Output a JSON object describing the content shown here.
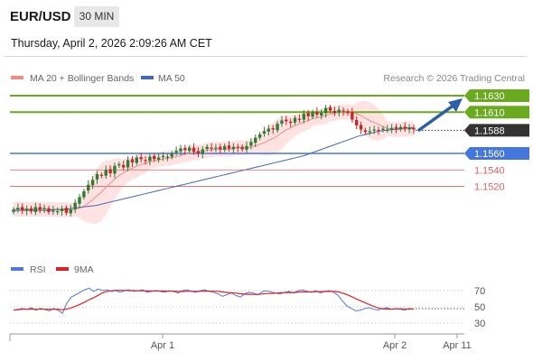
{
  "header": {
    "pair": "EUR/USD",
    "timeframe": "30 MIN",
    "datetime": "Thursday, April 2, 2026 2:09:26 AM CET"
  },
  "colors": {
    "candle_up": "#2e7d32",
    "candle_down": "#c62828",
    "bollinger_fill": "#ffdede",
    "ma20": "#f28b82",
    "ma50": "#4466bb",
    "resistance": "#6aaa1e",
    "support_major": "#4477dd",
    "support_minor": "#e06060",
    "current": "#333333",
    "rsi": "#5577dd",
    "rsi_ma": "#dd2222",
    "arrow": "#2b5fa8"
  },
  "chart_data": [
    {
      "type": "candlestick",
      "title": "",
      "legend": [
        {
          "label": "MA 20 + Bollinger Bands",
          "color": "#f28b82"
        },
        {
          "label": "MA 50",
          "color": "#4466bb"
        }
      ],
      "legend_position": "top-left",
      "watermark": "Research © 2026 Trading Central",
      "ylim": [
        1.5,
        1.64
      ],
      "y_display_scale": 0.0,
      "x_ticks": [
        "Apr 1",
        "Apr 2",
        "Apr 11"
      ],
      "levels": [
        {
          "value": "1.1630",
          "role": "resistance"
        },
        {
          "value": "1.1610",
          "role": "resistance"
        },
        {
          "value": "1.1588",
          "role": "current"
        },
        {
          "value": "1.1560",
          "role": "support_major"
        },
        {
          "value": "1.1540",
          "role": "support_minor"
        },
        {
          "value": "1.1520",
          "role": "support_minor"
        }
      ],
      "candles_close": [
        1.1492,
        1.1494,
        1.1491,
        1.1493,
        1.149,
        1.1495,
        1.1492,
        1.1494,
        1.1489,
        1.1491,
        1.149,
        1.1493,
        1.1488,
        1.1492,
        1.15,
        1.1507,
        1.1514,
        1.1522,
        1.1528,
        1.1535,
        1.1533,
        1.154,
        1.1536,
        1.1545,
        1.1547,
        1.1543,
        1.1552,
        1.1549,
        1.1555,
        1.1553,
        1.1551,
        1.1556,
        1.1553,
        1.1555,
        1.1557,
        1.1556,
        1.156,
        1.1563,
        1.1566,
        1.1564,
        1.1567,
        1.1562,
        1.156,
        1.1565,
        1.1568,
        1.1566,
        1.1567,
        1.1565,
        1.1569,
        1.1566,
        1.1568,
        1.1567,
        1.1565,
        1.1569,
        1.1574,
        1.1579,
        1.1583,
        1.1587,
        1.159,
        1.1589,
        1.1596,
        1.16,
        1.1599,
        1.1597,
        1.1603,
        1.1601,
        1.1608,
        1.1605,
        1.161,
        1.1607,
        1.1609,
        1.1615,
        1.1612,
        1.1609,
        1.1613,
        1.1611,
        1.1609,
        1.1601,
        1.1594,
        1.1589,
        1.1586,
        1.1587,
        1.1589,
        1.1588,
        1.159,
        1.1589,
        1.1591,
        1.159,
        1.1592,
        1.159,
        1.1591,
        1.1589
      ],
      "ma50": [
        1.1491,
        1.1491,
        1.1491,
        1.1491,
        1.1491,
        1.1491,
        1.1492,
        1.1492,
        1.1493,
        1.1494,
        1.1495,
        1.1496,
        1.1497,
        1.1499,
        1.1501,
        1.1503,
        1.1505,
        1.1507,
        1.1509,
        1.1511,
        1.1513,
        1.1515,
        1.1517,
        1.1519,
        1.1521,
        1.1523,
        1.1525,
        1.1527,
        1.1529,
        1.1531,
        1.1533,
        1.1535,
        1.1537,
        1.1539,
        1.1541,
        1.1543,
        1.1545,
        1.1547,
        1.1549,
        1.1551,
        1.1553,
        1.1555,
        1.1557,
        1.156,
        1.1563,
        1.1566,
        1.1569,
        1.1572,
        1.1575,
        1.1578,
        1.1581,
        1.1583,
        1.1585,
        1.1587,
        1.1588,
        1.1589,
        1.159,
        1.1591,
        1.1591
      ],
      "rsi": {
        "ticks": [
          "70",
          "50",
          "30"
        ],
        "legend": [
          {
            "label": "RSI",
            "color": "#5577dd"
          },
          {
            "label": "9MA",
            "color": "#dd2222"
          }
        ]
      }
    }
  ]
}
